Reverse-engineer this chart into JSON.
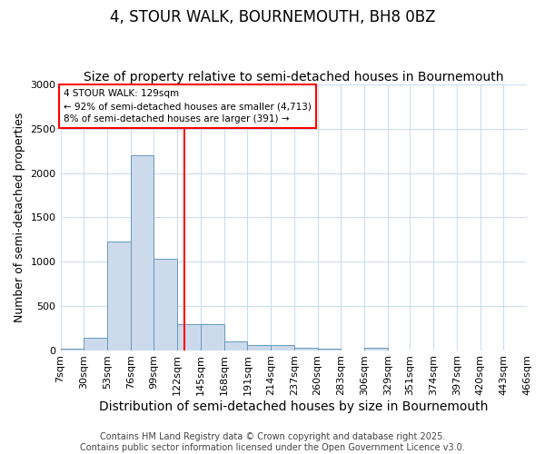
{
  "title": "4, STOUR WALK, BOURNEMOUTH, BH8 0BZ",
  "subtitle": "Size of property relative to semi-detached houses in Bournemouth",
  "xlabel": "Distribution of semi-detached houses by size in Bournemouth",
  "ylabel": "Number of semi-detached properties",
  "footer_line1": "Contains HM Land Registry data © Crown copyright and database right 2025.",
  "footer_line2": "Contains public sector information licensed under the Open Government Licence v3.0.",
  "bin_labels": [
    "7sqm",
    "30sqm",
    "53sqm",
    "76sqm",
    "99sqm",
    "122sqm",
    "145sqm",
    "168sqm",
    "191sqm",
    "214sqm",
    "237sqm",
    "260sqm",
    "283sqm",
    "306sqm",
    "329sqm",
    "351sqm",
    "374sqm",
    "397sqm",
    "420sqm",
    "443sqm",
    "466sqm"
  ],
  "bin_edges": [
    7,
    30,
    53,
    76,
    99,
    122,
    145,
    168,
    191,
    214,
    237,
    260,
    283,
    306,
    329,
    351,
    374,
    397,
    420,
    443,
    466
  ],
  "bar_heights": [
    15,
    140,
    1230,
    2200,
    1030,
    290,
    290,
    100,
    55,
    55,
    30,
    20,
    0,
    25,
    0,
    0,
    0,
    0,
    0,
    0
  ],
  "bar_color": "#ccdaec",
  "bar_edge_color": "#6699bb",
  "red_line_x": 129,
  "annotation_line1": "4 STOUR WALK: 129sqm",
  "annotation_line2": "← 92% of semi-detached houses are smaller (4,713)",
  "annotation_line3": "8% of semi-detached houses are larger (391) →",
  "ylim": [
    0,
    3000
  ],
  "yticks": [
    0,
    500,
    1000,
    1500,
    2000,
    2500,
    3000
  ],
  "background_color": "#ffffff",
  "plot_bg_color": "#ffffff",
  "grid_color": "#ccddee",
  "title_fontsize": 12,
  "subtitle_fontsize": 10,
  "xlabel_fontsize": 10,
  "ylabel_fontsize": 9,
  "tick_fontsize": 8,
  "footer_fontsize": 7
}
